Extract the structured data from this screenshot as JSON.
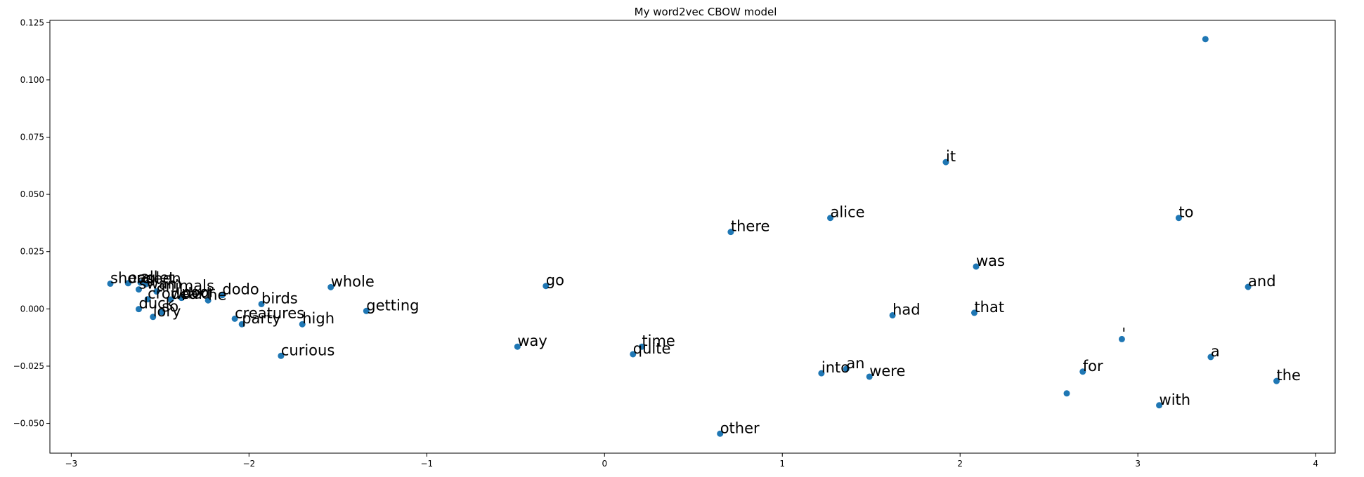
{
  "chart_data": {
    "type": "scatter",
    "title": "My word2vec CBOW  model",
    "xlabel": "",
    "ylabel": "",
    "xlim": [
      -3.12,
      4.11
    ],
    "ylim": [
      -0.063,
      0.126
    ],
    "xticks": [
      -3,
      -2,
      -1,
      0,
      1,
      2,
      3,
      4
    ],
    "xtick_labels": [
      "−3",
      "−2",
      "−1",
      "0",
      "1",
      "2",
      "3",
      "4"
    ],
    "yticks": [
      -0.05,
      -0.025,
      0.0,
      0.025,
      0.05,
      0.075,
      0.1,
      0.125
    ],
    "ytick_labels": [
      "−0.050",
      "−0.025",
      "0.000",
      "0.025",
      "0.050",
      "0.075",
      "0.100",
      "0.125"
    ],
    "grid": false,
    "point_color": "#1f77b4",
    "points": [
      {
        "label": "",
        "x": 3.38,
        "y": 0.1178
      },
      {
        "label": "it",
        "x": 1.92,
        "y": 0.0641
      },
      {
        "label": "alice",
        "x": 1.27,
        "y": 0.0397
      },
      {
        "label": "to",
        "x": 3.23,
        "y": 0.0397
      },
      {
        "label": "there",
        "x": 0.71,
        "y": 0.0336
      },
      {
        "label": "was",
        "x": 2.09,
        "y": 0.0185
      },
      {
        "label": "and",
        "x": 3.62,
        "y": 0.0096
      },
      {
        "label": "go",
        "x": -0.33,
        "y": 0.01
      },
      {
        "label": "whole",
        "x": -1.54,
        "y": 0.0095
      },
      {
        "label": "getting",
        "x": -1.34,
        "y": -0.0009
      },
      {
        "label": "had",
        "x": 1.62,
        "y": -0.0028
      },
      {
        "label": "that",
        "x": 2.08,
        "y": -0.0017
      },
      {
        "label": "high",
        "x": -1.7,
        "y": -0.0067
      },
      {
        "label": "birds",
        "x": -1.93,
        "y": 0.0021
      },
      {
        "label": "creatures",
        "x": -2.08,
        "y": -0.0043
      },
      {
        "label": "party",
        "x": -2.04,
        "y": -0.0067
      },
      {
        "label": "curious",
        "x": -1.82,
        "y": -0.0205
      },
      {
        "label": "way",
        "x": -0.49,
        "y": -0.0165
      },
      {
        "label": "time",
        "x": 0.21,
        "y": -0.0165
      },
      {
        "label": "quite",
        "x": 0.16,
        "y": -0.0198
      },
      {
        "label": "into",
        "x": 1.22,
        "y": -0.0281
      },
      {
        "label": "an",
        "x": 1.36,
        "y": -0.0262
      },
      {
        "label": "were",
        "x": 1.49,
        "y": -0.0296
      },
      {
        "label": "other",
        "x": 0.65,
        "y": -0.0545
      },
      {
        "label": "'",
        "x": 2.91,
        "y": -0.0132
      },
      {
        "label": "for",
        "x": 2.69,
        "y": -0.0274
      },
      {
        "label": "",
        "x": 2.6,
        "y": -0.0369
      },
      {
        "label": "a",
        "x": 3.41,
        "y": -0.021
      },
      {
        "label": "the",
        "x": 3.78,
        "y": -0.0315
      },
      {
        "label": "with",
        "x": 3.12,
        "y": -0.0421
      },
      {
        "label": "shore",
        "x": -2.78,
        "y": 0.011
      },
      {
        "label": "eaglet",
        "x": -2.68,
        "y": 0.0112
      },
      {
        "label": "all",
        "x": -2.61,
        "y": 0.0115
      },
      {
        "label": "seen",
        "x": -2.58,
        "y": 0.0108
      },
      {
        "label": "swam",
        "x": -2.62,
        "y": 0.0085
      },
      {
        "label": "animals",
        "x": -2.52,
        "y": 0.0076
      },
      {
        "label": "crowded",
        "x": -2.57,
        "y": 0.0042
      },
      {
        "label": "poor",
        "x": -2.38,
        "y": 0.0048
      },
      {
        "label": "dear",
        "x": -2.44,
        "y": 0.0041
      },
      {
        "label": "dodo",
        "x": -2.15,
        "y": 0.006
      },
      {
        "label": "he",
        "x": -2.23,
        "y": 0.0037
      },
      {
        "label": "duck",
        "x": -2.62,
        "y": -0.0001
      },
      {
        "label": "lory",
        "x": -2.54,
        "y": -0.0035
      },
      {
        "label": "so",
        "x": -2.49,
        "y": -0.0014
      }
    ]
  }
}
